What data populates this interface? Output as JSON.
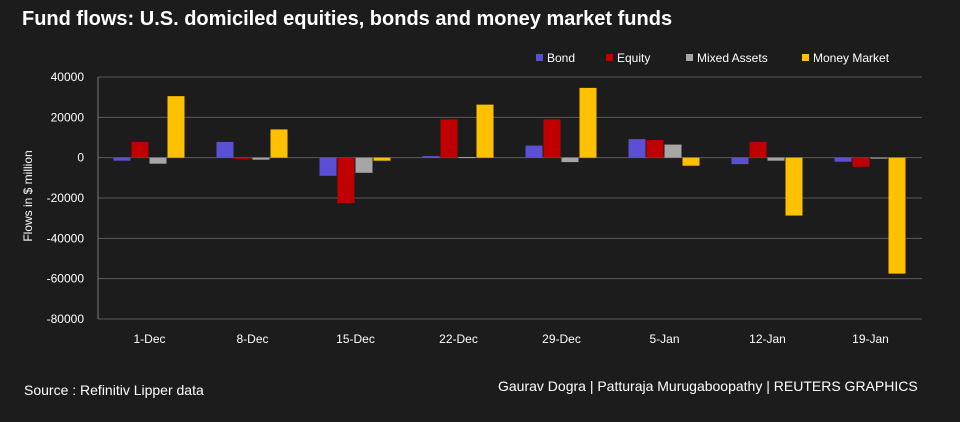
{
  "chart_data": {
    "type": "bar",
    "title": "Fund flows: U.S. domiciled equities, bonds and money market funds",
    "ylabel": "Flows in $ million",
    "xlabel": "",
    "ylim": [
      -80000,
      40000
    ],
    "yticks": [
      40000,
      20000,
      0,
      -20000,
      -40000,
      -60000,
      -80000
    ],
    "yticks_labels": [
      "40000",
      "20000",
      "0",
      "-20000",
      "-40000",
      "-60000",
      "-80000"
    ],
    "grid": true,
    "legend_position": "top-right",
    "categories": [
      "1-Dec",
      "8-Dec",
      "15-Dec",
      "22-Dec",
      "29-Dec",
      "5-Jan",
      "12-Jan",
      "19-Jan"
    ],
    "series": [
      {
        "name": "Bond",
        "color": "#5b4fd6",
        "values": [
          -1500,
          7800,
          -9000,
          800,
          6000,
          9200,
          -3200,
          -2000
        ]
      },
      {
        "name": "Equity",
        "color": "#c00000",
        "values": [
          7800,
          -600,
          -22500,
          19000,
          19000,
          8700,
          7800,
          -4500
        ]
      },
      {
        "name": "Mixed Assets",
        "color": "#a6a6a6",
        "values": [
          -3000,
          -1000,
          -7500,
          300,
          -2200,
          6500,
          -1500,
          -300
        ]
      },
      {
        "name": "Money Market",
        "color": "#ffc000",
        "values": [
          30500,
          14000,
          -1500,
          26300,
          34600,
          -4000,
          -28700,
          -57500
        ]
      }
    ]
  },
  "footer": {
    "source": "Source : Refinitiv Lipper data",
    "credit": "Gaurav Dogra | Patturaja Murugaboopathy | REUTERS GRAPHICS"
  }
}
